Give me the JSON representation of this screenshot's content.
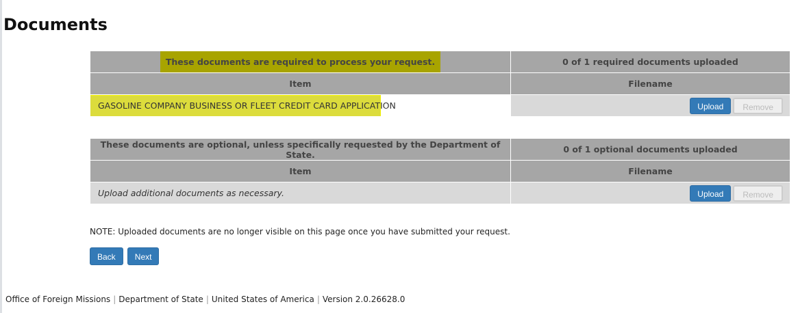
{
  "page": {
    "title": "Documents"
  },
  "required": {
    "caption": "These documents are required to process your request.",
    "count": "0 of 1 required documents uploaded",
    "col_item": "Item",
    "col_filename": "Filename",
    "rows": [
      {
        "item": "GASOLINE COMPANY BUSINESS OR FLEET CREDIT CARD APPLICATION",
        "upload": "Upload",
        "remove": "Remove"
      }
    ]
  },
  "optional": {
    "caption": "These documents are optional, unless specifically requested by the Department of State.",
    "count": "0 of 1 optional documents uploaded",
    "col_item": "Item",
    "col_filename": "Filename",
    "rows": [
      {
        "item": "Upload additional documents as necessary.",
        "upload": "Upload",
        "remove": "Remove"
      }
    ]
  },
  "note": "NOTE: Uploaded documents are no longer visible on this page once you have submitted your request.",
  "nav": {
    "back": "Back",
    "next": "Next"
  },
  "footer": [
    "Office of Foreign Missions",
    "Department of State",
    "United States of America",
    "Version 2.0.26628.0"
  ],
  "colors": {
    "primary": "#337ab7",
    "header": "#a6a6a6",
    "row": "#d9d9d9",
    "highlight": "#dcdc3c"
  }
}
